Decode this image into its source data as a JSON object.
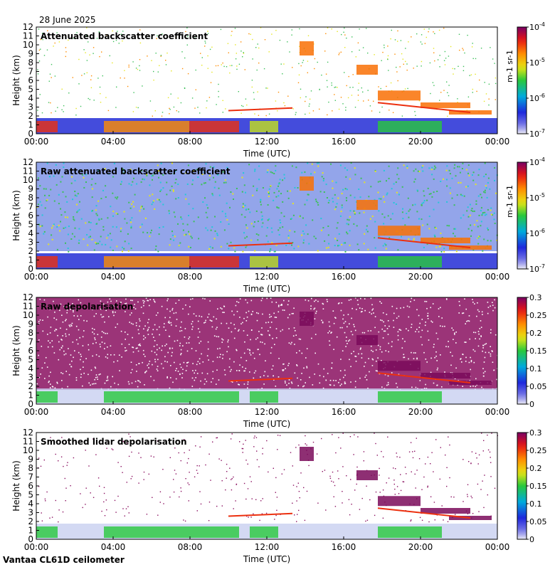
{
  "date": "28 June 2025",
  "footer": "Vantaa CL61D ceilometer",
  "chart_data": [
    {
      "type": "heatmap",
      "title": "Attenuated backscatter coefficient",
      "xlabel": "Time (UTC)",
      "ylabel": "Height (km)",
      "xticks": [
        "00:00",
        "04:00",
        "08:00",
        "12:00",
        "16:00",
        "20:00",
        "00:00"
      ],
      "yticks": [
        "0",
        "1",
        "2",
        "3",
        "4",
        "5",
        "6",
        "7",
        "8",
        "9",
        "10",
        "11",
        "12"
      ],
      "ylim": [
        0,
        12
      ],
      "colorbar": {
        "scale": "log",
        "range": [
          1e-07,
          0.0001
        ],
        "ticks": [
          "10-7",
          "10-6",
          "10-5",
          "10-4"
        ],
        "tick_base": "10",
        "tick_exp": [
          "-7",
          "-6",
          "-5",
          "-4"
        ],
        "unit": "m-1 sr-1"
      }
    },
    {
      "type": "heatmap",
      "title": "Raw attenuated backscatter coefficient",
      "xlabel": "Time (UTC)",
      "ylabel": "Height (km)",
      "xticks": [
        "00:00",
        "04:00",
        "08:00",
        "12:00",
        "16:00",
        "20:00",
        "00:00"
      ],
      "yticks": [
        "0",
        "1",
        "2",
        "3",
        "4",
        "5",
        "6",
        "7",
        "8",
        "9",
        "10",
        "11",
        "12"
      ],
      "ylim": [
        0,
        12
      ],
      "colorbar": {
        "scale": "log",
        "range": [
          1e-07,
          0.0001
        ],
        "ticks": [
          "10-7",
          "10-6",
          "10-5",
          "10-4"
        ],
        "tick_base": "10",
        "tick_exp": [
          "-7",
          "-6",
          "-5",
          "-4"
        ],
        "unit": "m-1 sr-1"
      }
    },
    {
      "type": "heatmap",
      "title": "Raw depolarisation",
      "xlabel": "Time (UTC)",
      "ylabel": "Height (km)",
      "xticks": [
        "00:00",
        "04:00",
        "08:00",
        "12:00",
        "16:00",
        "20:00",
        "00:00"
      ],
      "yticks": [
        "0",
        "1",
        "2",
        "3",
        "4",
        "5",
        "6",
        "7",
        "8",
        "9",
        "10",
        "11",
        "12"
      ],
      "ylim": [
        0,
        12
      ],
      "colorbar": {
        "scale": "linear",
        "range": [
          0,
          0.3
        ],
        "ticks": [
          "0",
          "0.05",
          "0.1",
          "0.15",
          "0.2",
          "0.25",
          "0.3"
        ]
      }
    },
    {
      "type": "heatmap",
      "title": "Smoothed lidar depolarisation",
      "xlabel": "Time (UTC)",
      "ylabel": "Height (km)",
      "xticks": [
        "00:00",
        "04:00",
        "08:00",
        "12:00",
        "16:00",
        "20:00",
        "00:00"
      ],
      "yticks": [
        "0",
        "1",
        "2",
        "3",
        "4",
        "5",
        "6",
        "7",
        "8",
        "9",
        "10",
        "11",
        "12"
      ],
      "ylim": [
        0,
        12
      ],
      "colorbar": {
        "scale": "linear",
        "range": [
          0,
          0.3
        ],
        "ticks": [
          "0",
          "0.05",
          "0.1",
          "0.15",
          "0.2",
          "0.25",
          "0.3"
        ]
      }
    }
  ]
}
